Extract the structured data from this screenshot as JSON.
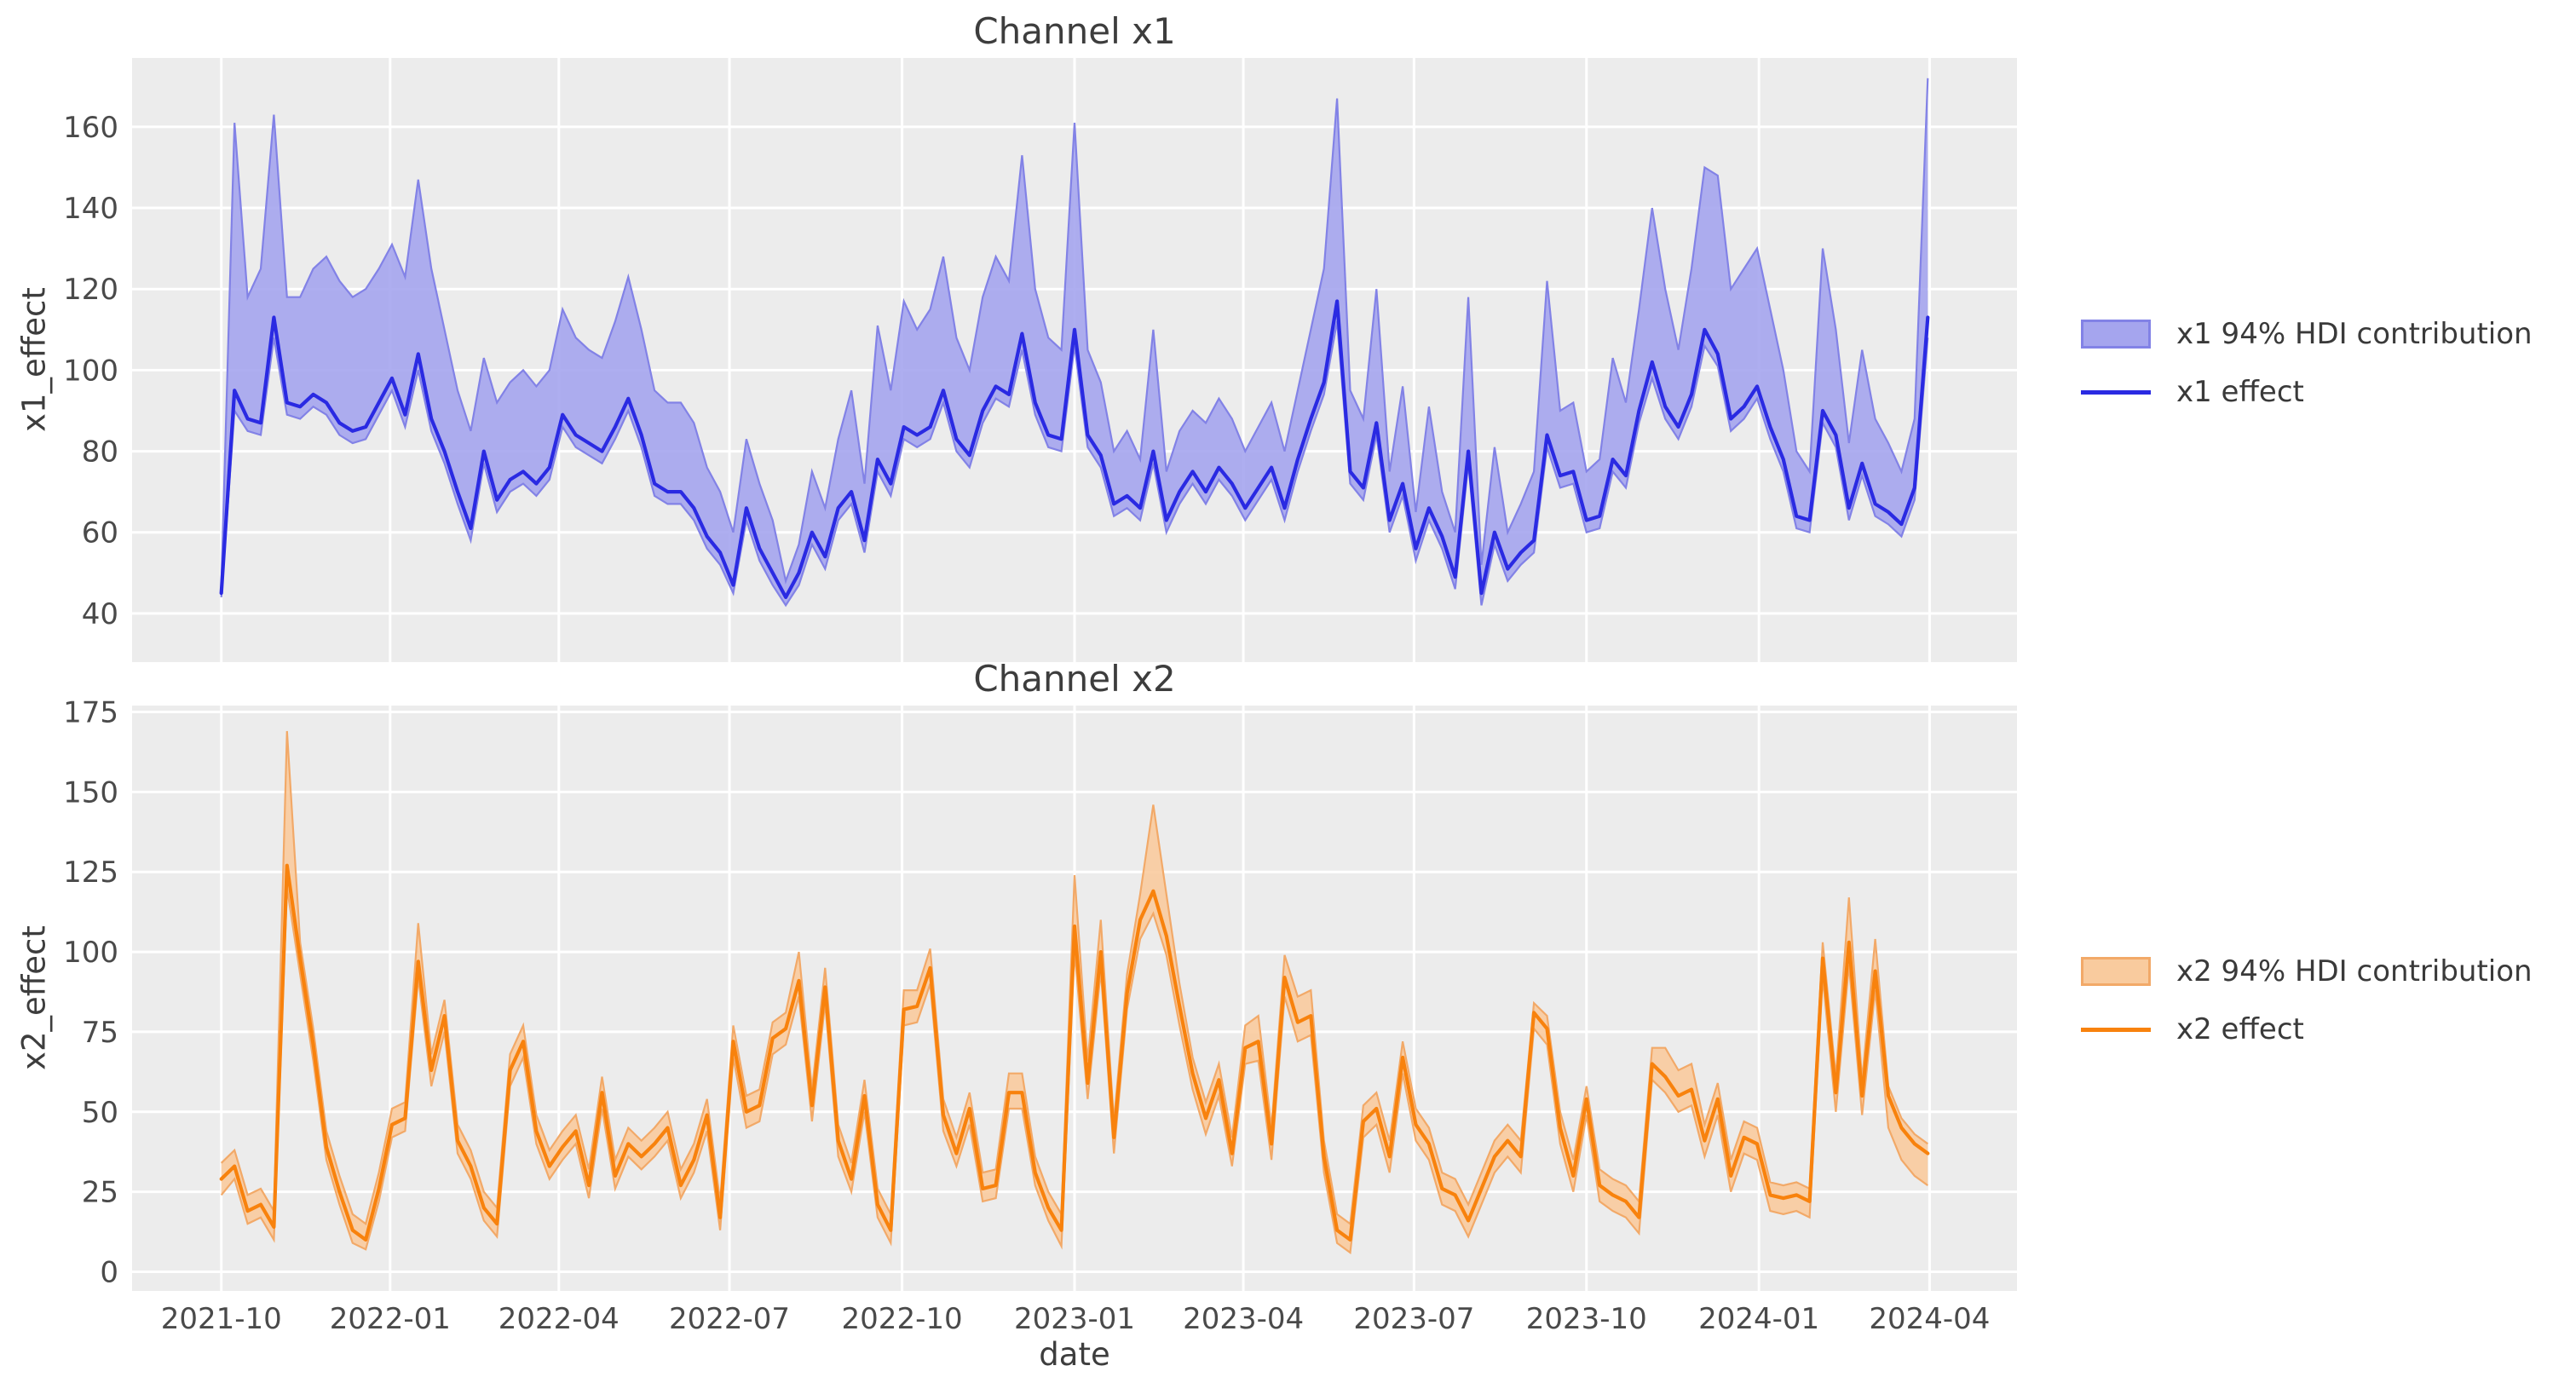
{
  "figure": {
    "kind": "matplotlib-style dual subplot time-series",
    "plot_background": "#ececec",
    "grid_color": "#ffffff",
    "text_color": "#3d3d3d"
  },
  "chart_data": [
    {
      "id": "x1",
      "type": "line",
      "title": "Channel x1",
      "ylabel": "x1_effect",
      "xlabel": null,
      "grid": true,
      "legend_position": "right-outside",
      "line_color": "#2a2ae2",
      "band_color": "#a5a5ee",
      "band_edge_color": "#8282e6",
      "ylim": [
        28,
        177
      ],
      "xlim_weeks": [
        -6.8,
        136.8
      ],
      "y_ticks": [
        40,
        60,
        80,
        100,
        120,
        140,
        160
      ],
      "x_tick_labels": [
        "2021-10",
        "2022-01",
        "2022-04",
        "2022-07",
        "2022-10",
        "2023-01",
        "2023-04",
        "2023-07",
        "2023-10",
        "2024-01",
        "2024-04"
      ],
      "x_tick_weeks": [
        0,
        12.86,
        25.71,
        38.71,
        51.86,
        65.0,
        77.86,
        90.86,
        104.0,
        117.14,
        130.14
      ],
      "show_x_tick_labels": false,
      "x": {
        "type": "weekly_index",
        "n_points": 131,
        "first_tick": "2021-10",
        "last_tick": "2024-04"
      },
      "legend": [
        {
          "label": "x1 94% HDI contribution",
          "type": "patch"
        },
        {
          "label": "x1 effect",
          "type": "line"
        }
      ],
      "series": [
        {
          "name": "x1 effect",
          "role": "line",
          "values": [
            45,
            95,
            88,
            87,
            113,
            92,
            91,
            94,
            92,
            87,
            85,
            86,
            92,
            98,
            89,
            104,
            88,
            80,
            70,
            61,
            80,
            68,
            73,
            75,
            72,
            76,
            89,
            84,
            82,
            80,
            86,
            93,
            84,
            72,
            70,
            70,
            66,
            59,
            55,
            47,
            66,
            56,
            50,
            44,
            50,
            60,
            54,
            66,
            70,
            58,
            78,
            72,
            86,
            84,
            86,
            95,
            83,
            79,
            90,
            96,
            94,
            109,
            92,
            84,
            83,
            110,
            84,
            79,
            67,
            69,
            66,
            80,
            63,
            70,
            75,
            70,
            76,
            72,
            66,
            71,
            76,
            66,
            78,
            88,
            97,
            117,
            75,
            71,
            87,
            63,
            72,
            56,
            66,
            59,
            49,
            80,
            45,
            60,
            51,
            55,
            58,
            84,
            74,
            75,
            63,
            64,
            78,
            74,
            90,
            102,
            91,
            86,
            94,
            110,
            104,
            88,
            91,
            96,
            86,
            78,
            64,
            63,
            90,
            84,
            66,
            77,
            67,
            65,
            62,
            71,
            113
          ]
        },
        {
          "name": "x1 94% HDI upper",
          "role": "band_upper",
          "values": [
            47,
            161,
            118,
            125,
            163,
            118,
            118,
            125,
            128,
            122,
            118,
            120,
            125,
            131,
            123,
            147,
            125,
            110,
            95,
            85,
            103,
            92,
            97,
            100,
            96,
            100,
            115,
            108,
            105,
            103,
            112,
            123,
            110,
            95,
            92,
            92,
            87,
            76,
            70,
            60,
            83,
            72,
            63,
            48,
            57,
            75,
            66,
            83,
            95,
            72,
            111,
            95,
            117,
            110,
            115,
            128,
            108,
            100,
            118,
            128,
            122,
            153,
            120,
            108,
            105,
            161,
            105,
            97,
            80,
            85,
            78,
            110,
            75,
            85,
            90,
            87,
            93,
            88,
            80,
            86,
            92,
            80,
            95,
            110,
            125,
            167,
            95,
            88,
            120,
            75,
            96,
            65,
            91,
            70,
            60,
            118,
            52,
            81,
            60,
            67,
            75,
            122,
            90,
            92,
            75,
            78,
            103,
            92,
            115,
            140,
            120,
            105,
            125,
            150,
            148,
            120,
            125,
            130,
            115,
            100,
            80,
            75,
            130,
            110,
            82,
            105,
            88,
            82,
            75,
            88,
            172
          ]
        },
        {
          "name": "x1 94% HDI lower",
          "role": "band_lower",
          "values": [
            44,
            90,
            85,
            84,
            108,
            89,
            88,
            91,
            89,
            84,
            82,
            83,
            89,
            95,
            86,
            100,
            85,
            77,
            67,
            58,
            77,
            65,
            70,
            72,
            69,
            73,
            86,
            81,
            79,
            77,
            83,
            90,
            81,
            69,
            67,
            67,
            63,
            56,
            52,
            45,
            63,
            53,
            47,
            42,
            47,
            57,
            51,
            63,
            67,
            55,
            75,
            69,
            83,
            81,
            83,
            92,
            80,
            76,
            87,
            93,
            91,
            105,
            89,
            81,
            80,
            106,
            81,
            76,
            64,
            66,
            63,
            77,
            60,
            67,
            72,
            67,
            73,
            69,
            63,
            68,
            73,
            63,
            75,
            85,
            94,
            112,
            72,
            68,
            84,
            60,
            69,
            53,
            63,
            56,
            46,
            77,
            42,
            57,
            48,
            52,
            55,
            81,
            71,
            72,
            60,
            61,
            75,
            71,
            87,
            98,
            88,
            83,
            91,
            106,
            101,
            85,
            88,
            93,
            83,
            75,
            61,
            60,
            87,
            81,
            63,
            74,
            64,
            62,
            59,
            68,
            108
          ]
        }
      ]
    },
    {
      "id": "x2",
      "type": "line",
      "title": "Channel x2",
      "ylabel": "x2_effect",
      "xlabel": "date",
      "grid": true,
      "legend_position": "right-outside",
      "line_color": "#f8820d",
      "band_color": "#f9cb9e",
      "band_edge_color": "#f2a968",
      "ylim": [
        -6,
        177
      ],
      "xlim_weeks": [
        -6.8,
        136.8
      ],
      "y_ticks": [
        0,
        25,
        50,
        75,
        100,
        125,
        150,
        175
      ],
      "x_tick_labels": [
        "2021-10",
        "2022-01",
        "2022-04",
        "2022-07",
        "2022-10",
        "2023-01",
        "2023-04",
        "2023-07",
        "2023-10",
        "2024-01",
        "2024-04"
      ],
      "x_tick_weeks": [
        0,
        12.86,
        25.71,
        38.71,
        51.86,
        65.0,
        77.86,
        90.86,
        104.0,
        117.14,
        130.14
      ],
      "show_x_tick_labels": true,
      "x": {
        "type": "weekly_index",
        "n_points": 131,
        "first_tick": "2021-10",
        "last_tick": "2024-04"
      },
      "legend": [
        {
          "label": "x2 94% HDI contribution",
          "type": "patch"
        },
        {
          "label": "x2 effect",
          "type": "line"
        }
      ],
      "series": [
        {
          "name": "x2 effect",
          "role": "line",
          "values": [
            29,
            33,
            19,
            21,
            14,
            127,
            98,
            71,
            39,
            25,
            13,
            10,
            26,
            46,
            48,
            97,
            63,
            80,
            41,
            33,
            20,
            15,
            63,
            72,
            44,
            33,
            39,
            44,
            27,
            56,
            30,
            40,
            36,
            40,
            45,
            27,
            35,
            49,
            17,
            72,
            50,
            52,
            73,
            76,
            91,
            52,
            89,
            41,
            29,
            55,
            21,
            13,
            82,
            83,
            95,
            49,
            37,
            51,
            26,
            27,
            56,
            56,
            31,
            20,
            13,
            108,
            59,
            100,
            42,
            87,
            110,
            119,
            105,
            83,
            62,
            48,
            60,
            37,
            70,
            72,
            40,
            92,
            78,
            80,
            36,
            13,
            10,
            47,
            51,
            36,
            67,
            46,
            40,
            26,
            24,
            16,
            26,
            36,
            41,
            36,
            81,
            76,
            45,
            30,
            54,
            27,
            24,
            22,
            17,
            65,
            61,
            55,
            57,
            41,
            54,
            30,
            42,
            40,
            24,
            23,
            24,
            22,
            98,
            56,
            103,
            55,
            94,
            55,
            45,
            40,
            37
          ]
        },
        {
          "name": "x2 94% HDI upper",
          "role": "band_upper",
          "values": [
            34,
            38,
            24,
            26,
            19,
            169,
            103,
            76,
            44,
            30,
            18,
            15,
            31,
            51,
            53,
            109,
            68,
            85,
            46,
            38,
            25,
            20,
            68,
            77,
            49,
            38,
            44,
            49,
            32,
            61,
            35,
            45,
            41,
            45,
            50,
            32,
            40,
            54,
            22,
            77,
            55,
            57,
            78,
            81,
            100,
            57,
            95,
            46,
            34,
            60,
            26,
            18,
            88,
            88,
            101,
            54,
            42,
            56,
            31,
            32,
            62,
            62,
            36,
            25,
            18,
            124,
            66,
            110,
            47,
            93,
            118,
            146,
            118,
            90,
            67,
            53,
            65,
            42,
            77,
            80,
            45,
            99,
            86,
            88,
            41,
            18,
            15,
            52,
            56,
            41,
            72,
            51,
            45,
            31,
            29,
            21,
            31,
            41,
            46,
            41,
            84,
            80,
            50,
            35,
            58,
            32,
            29,
            27,
            22,
            70,
            70,
            63,
            65,
            46,
            59,
            35,
            47,
            45,
            28,
            27,
            28,
            26,
            103,
            61,
            117,
            60,
            104,
            58,
            48,
            43,
            40
          ]
        },
        {
          "name": "x2 94% HDI lower",
          "role": "band_lower",
          "values": [
            24,
            29,
            15,
            17,
            10,
            120,
            93,
            66,
            35,
            21,
            9,
            7,
            22,
            42,
            44,
            92,
            58,
            75,
            37,
            29,
            16,
            11,
            58,
            67,
            40,
            29,
            35,
            40,
            23,
            51,
            26,
            36,
            32,
            36,
            41,
            23,
            31,
            44,
            13,
            67,
            45,
            47,
            68,
            71,
            86,
            47,
            84,
            36,
            25,
            50,
            17,
            9,
            77,
            78,
            90,
            44,
            33,
            46,
            22,
            23,
            51,
            51,
            27,
            16,
            8,
            100,
            54,
            94,
            37,
            82,
            104,
            112,
            99,
            77,
            57,
            43,
            55,
            33,
            65,
            66,
            35,
            86,
            72,
            74,
            31,
            9,
            6,
            42,
            46,
            31,
            62,
            41,
            35,
            21,
            19,
            11,
            21,
            31,
            36,
            31,
            76,
            71,
            40,
            25,
            49,
            22,
            19,
            17,
            12,
            60,
            56,
            50,
            52,
            36,
            49,
            25,
            37,
            35,
            19,
            18,
            19,
            17,
            92,
            50,
            96,
            49,
            88,
            45,
            35,
            30,
            27
          ]
        }
      ]
    }
  ]
}
